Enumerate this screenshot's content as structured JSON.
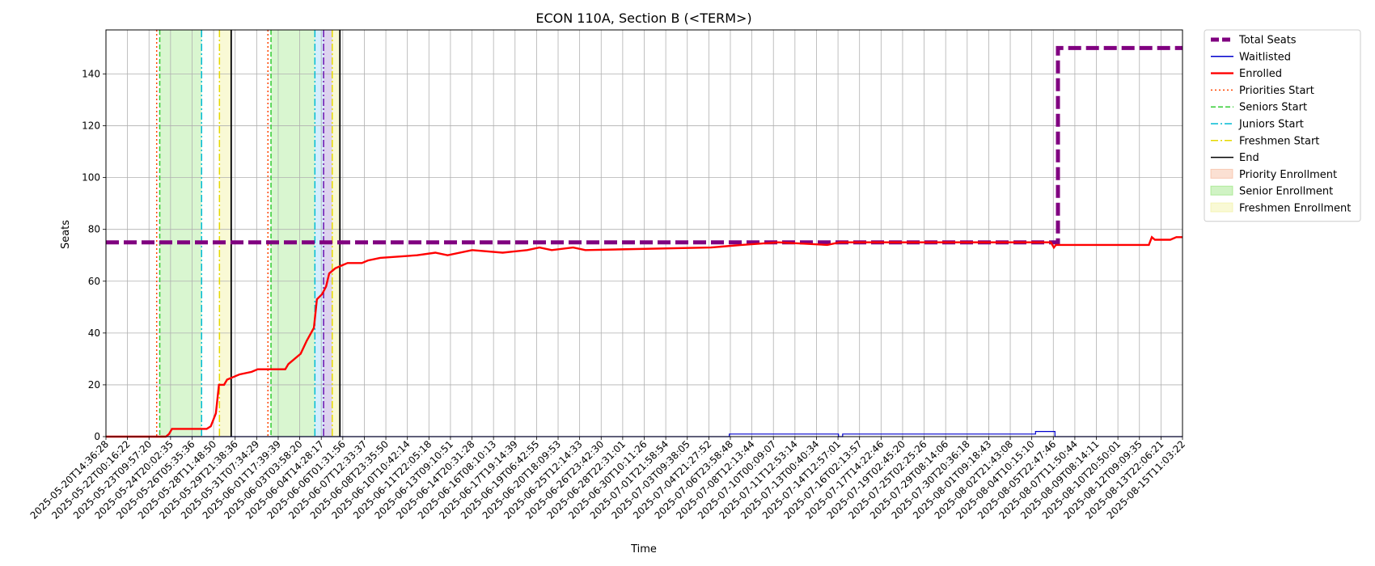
{
  "chart_data": {
    "type": "line",
    "title": "ECON 110A, Section B (<TERM>)",
    "xlabel": "Time",
    "ylabel": "Seats",
    "ylim": [
      0,
      157
    ],
    "y_ticks": [
      0,
      20,
      40,
      60,
      80,
      100,
      120,
      140
    ],
    "x_range": [
      "2025-05-20T14:36:28",
      "2025-08-16T12:00:00"
    ],
    "x_tick_labels": [
      "2025-05-20T14:36:28",
      "2025-05-22T00:16:22",
      "2025-05-23T09:57:20",
      "2025-05-24T20:02:35",
      "2025-05-26T05:35:36",
      "2025-05-28T11:48:50",
      "2025-05-29T21:38:36",
      "2025-05-31T07:34:29",
      "2025-06-01T17:39:39",
      "2025-06-03T03:58:20",
      "2025-06-04T14:28:17",
      "2025-06-06T01:31:56",
      "2025-06-07T12:33:37",
      "2025-06-08T23:35:50",
      "2025-06-10T10:42:14",
      "2025-06-11T22:05:18",
      "2025-06-13T09:10:51",
      "2025-06-14T20:31:28",
      "2025-06-16T08:10:13",
      "2025-06-17T19:14:39",
      "2025-06-19T06:42:55",
      "2025-06-20T18:09:53",
      "2025-06-25T12:14:33",
      "2025-06-26T23:42:30",
      "2025-06-28T22:31:01",
      "2025-06-30T10:11:26",
      "2025-07-01T21:58:54",
      "2025-07-03T09:38:05",
      "2025-07-04T21:27:52",
      "2025-07-06T23:58:48",
      "2025-07-08T12:13:44",
      "2025-07-10T00:09:07",
      "2025-07-11T12:53:14",
      "2025-07-13T00:40:34",
      "2025-07-14T12:57:01",
      "2025-07-16T02:13:57",
      "2025-07-17T14:22:46",
      "2025-07-19T02:45:20",
      "2025-07-25T02:25:26",
      "2025-07-29T08:14:06",
      "2025-07-30T20:36:18",
      "2025-08-01T09:18:43",
      "2025-08-02T21:43:08",
      "2025-08-04T10:15:10",
      "2025-08-05T22:47:46",
      "2025-08-07T11:50:44",
      "2025-08-09T08:14:11",
      "2025-08-10T20:50:01",
      "2025-08-12T09:09:35",
      "2025-08-13T22:06:21",
      "2025-08-15T11:03:22"
    ],
    "series": [
      {
        "name": "Total Seats",
        "color": "#800080",
        "style": "dashed-thick",
        "points": [
          [
            "2025-05-20T14:36:28",
            75
          ],
          [
            "2025-08-06T08:00:00",
            75
          ],
          [
            "2025-08-06T08:00:00",
            150
          ],
          [
            "2025-08-16T12:00:00",
            150
          ]
        ]
      },
      {
        "name": "Waitlisted",
        "color": "#0000cc",
        "style": "solid-thin",
        "points": [
          [
            "2025-05-20T14:36:28",
            0
          ],
          [
            "2025-07-10T12:00:00",
            0
          ],
          [
            "2025-07-10T12:00:00",
            1
          ],
          [
            "2025-07-19T10:00:00",
            1
          ],
          [
            "2025-07-19T10:00:00",
            0
          ],
          [
            "2025-07-19T18:00:00",
            0
          ],
          [
            "2025-07-19T18:00:00",
            1
          ],
          [
            "2025-08-04T12:00:00",
            1
          ],
          [
            "2025-08-04T12:00:00",
            2
          ],
          [
            "2025-08-06T02:00:00",
            2
          ],
          [
            "2025-08-06T02:00:00",
            0
          ],
          [
            "2025-08-16T12:00:00",
            0
          ]
        ]
      },
      {
        "name": "Enrolled",
        "color": "#ff0000",
        "style": "solid-thick",
        "points": [
          [
            "2025-05-20T14:36:28",
            0
          ],
          [
            "2025-05-25T12:00:00",
            0
          ],
          [
            "2025-05-25T18:00:00",
            1
          ],
          [
            "2025-05-26T00:00:00",
            3
          ],
          [
            "2025-05-28T20:00:00",
            3
          ],
          [
            "2025-05-29T04:00:00",
            4
          ],
          [
            "2025-05-29T14:00:00",
            9
          ],
          [
            "2025-05-29T20:00:00",
            20
          ],
          [
            "2025-05-30T06:00:00",
            20
          ],
          [
            "2025-05-30T12:00:00",
            22
          ],
          [
            "2025-05-31T00:00:00",
            23
          ],
          [
            "2025-05-31T12:00:00",
            24
          ],
          [
            "2025-06-01T12:00:00",
            25
          ],
          [
            "2025-06-02T00:00:00",
            26
          ],
          [
            "2025-06-04T06:00:00",
            26
          ],
          [
            "2025-06-04T12:00:00",
            28
          ],
          [
            "2025-06-05T12:00:00",
            32
          ],
          [
            "2025-06-06T00:00:00",
            37
          ],
          [
            "2025-06-06T14:00:00",
            42
          ],
          [
            "2025-06-06T20:00:00",
            53
          ],
          [
            "2025-06-07T06:00:00",
            55
          ],
          [
            "2025-06-07T14:00:00",
            58
          ],
          [
            "2025-06-07T20:00:00",
            63
          ],
          [
            "2025-06-08T08:00:00",
            65
          ],
          [
            "2025-06-08T20:00:00",
            66
          ],
          [
            "2025-06-09T08:00:00",
            67
          ],
          [
            "2025-06-10T12:00:00",
            67
          ],
          [
            "2025-06-11T00:00:00",
            68
          ],
          [
            "2025-06-12T00:00:00",
            69
          ],
          [
            "2025-06-15T00:00:00",
            70
          ],
          [
            "2025-06-16T12:00:00",
            71
          ],
          [
            "2025-06-17T12:00:00",
            70
          ],
          [
            "2025-06-19T12:00:00",
            72
          ],
          [
            "2025-06-22T00:00:00",
            71
          ],
          [
            "2025-06-24T00:00:00",
            72
          ],
          [
            "2025-06-25T00:00:00",
            73
          ],
          [
            "2025-06-26T00:00:00",
            72
          ],
          [
            "2025-06-27T18:00:00",
            73
          ],
          [
            "2025-06-28T18:00:00",
            72
          ],
          [
            "2025-07-09T00:00:00",
            73
          ],
          [
            "2025-07-11T12:00:00",
            74
          ],
          [
            "2025-07-14T12:00:00",
            75
          ],
          [
            "2025-07-18T12:00:00",
            74
          ],
          [
            "2025-07-19T12:00:00",
            75
          ],
          [
            "2025-07-21T00:00:00",
            75
          ],
          [
            "2025-08-05T18:00:00",
            75
          ],
          [
            "2025-08-06T00:00:00",
            73
          ],
          [
            "2025-08-06T04:00:00",
            74
          ],
          [
            "2025-08-13T18:00:00",
            74
          ],
          [
            "2025-08-14T00:00:00",
            77
          ],
          [
            "2025-08-14T06:00:00",
            76
          ],
          [
            "2025-08-15T12:00:00",
            76
          ],
          [
            "2025-08-16T00:00:00",
            77
          ],
          [
            "2025-08-16T12:00:00",
            77
          ]
        ]
      }
    ],
    "vertical_markers": [
      {
        "name": "Priorities Start",
        "color": "#ff4500",
        "style": "dotted",
        "x": [
          "2025-05-24T18:00:00",
          "2025-06-02T20:00:00"
        ]
      },
      {
        "name": "Seniors Start",
        "color": "#33cc33",
        "style": "dashed",
        "x": [
          "2025-05-25T00:00:00",
          "2025-06-03T02:00:00"
        ]
      },
      {
        "name": "Juniors Start",
        "color": "#00bcd4",
        "style": "dashdot",
        "x": [
          "2025-05-28T10:00:00",
          "2025-06-06T16:00:00"
        ]
      },
      {
        "name": "Freshmen Start",
        "color": "#e6d800",
        "style": "dashdot",
        "x": [
          "2025-05-29T21:00:00",
          "2025-06-08T02:00:00"
        ]
      },
      {
        "name": "End",
        "color": "#000000",
        "style": "solid",
        "x": [
          "2025-05-30T20:00:00",
          "2025-06-08T17:00:00"
        ]
      }
    ],
    "extra_markers": [
      {
        "color": "#6a0dad",
        "style": "dashdot",
        "x": [
          "2025-06-07T09:00:00"
        ]
      }
    ],
    "shaded_regions": [
      {
        "name": "Priority Enrollment",
        "color": "#f4a582",
        "opacity": 0.35,
        "ranges": []
      },
      {
        "name": "Senior Enrollment",
        "color": "#77dd55",
        "opacity": 0.28,
        "ranges": [
          [
            "2025-05-25T00:00:00",
            "2025-05-28T10:00:00"
          ],
          [
            "2025-06-03T02:00:00",
            "2025-06-06T16:00:00"
          ]
        ]
      },
      {
        "name": "Freshmen Enrollment",
        "color": "#eeee88",
        "opacity": 0.35,
        "ranges": [
          [
            "2025-05-29T21:00:00",
            "2025-05-30T20:00:00"
          ],
          [
            "2025-06-08T02:00:00",
            "2025-06-08T17:00:00"
          ]
        ]
      },
      {
        "name": "",
        "color": "#87cefa",
        "opacity": 0.35,
        "ranges": [
          [
            "2025-06-06T16:00:00",
            "2025-06-07T09:00:00"
          ]
        ]
      },
      {
        "name": "",
        "color": "#b39ddb",
        "opacity": 0.45,
        "ranges": [
          [
            "2025-06-07T09:00:00",
            "2025-06-08T02:00:00"
          ]
        ]
      }
    ],
    "legend": {
      "placement": "outside-right",
      "entries": [
        {
          "label": "Total Seats",
          "kind": "line",
          "color": "#800080",
          "style": "dashed-thick"
        },
        {
          "label": "Waitlisted",
          "kind": "line",
          "color": "#0000cc",
          "style": "solid-thin"
        },
        {
          "label": "Enrolled",
          "kind": "line",
          "color": "#ff0000",
          "style": "solid-thick"
        },
        {
          "label": "Priorities Start",
          "kind": "line",
          "color": "#ff4500",
          "style": "dotted"
        },
        {
          "label": "Seniors Start",
          "kind": "line",
          "color": "#33cc33",
          "style": "dashed"
        },
        {
          "label": "Juniors Start",
          "kind": "line",
          "color": "#00bcd4",
          "style": "dashdot"
        },
        {
          "label": "Freshmen Start",
          "kind": "line",
          "color": "#e6d800",
          "style": "dashdot"
        },
        {
          "label": "End",
          "kind": "line",
          "color": "#000000",
          "style": "solid"
        },
        {
          "label": "Priority Enrollment",
          "kind": "patch",
          "color": "#f4a582"
        },
        {
          "label": "Senior Enrollment",
          "kind": "patch",
          "color": "#77dd55"
        },
        {
          "label": "Freshmen Enrollment",
          "kind": "patch",
          "color": "#eeee88"
        }
      ]
    },
    "grid": true
  }
}
